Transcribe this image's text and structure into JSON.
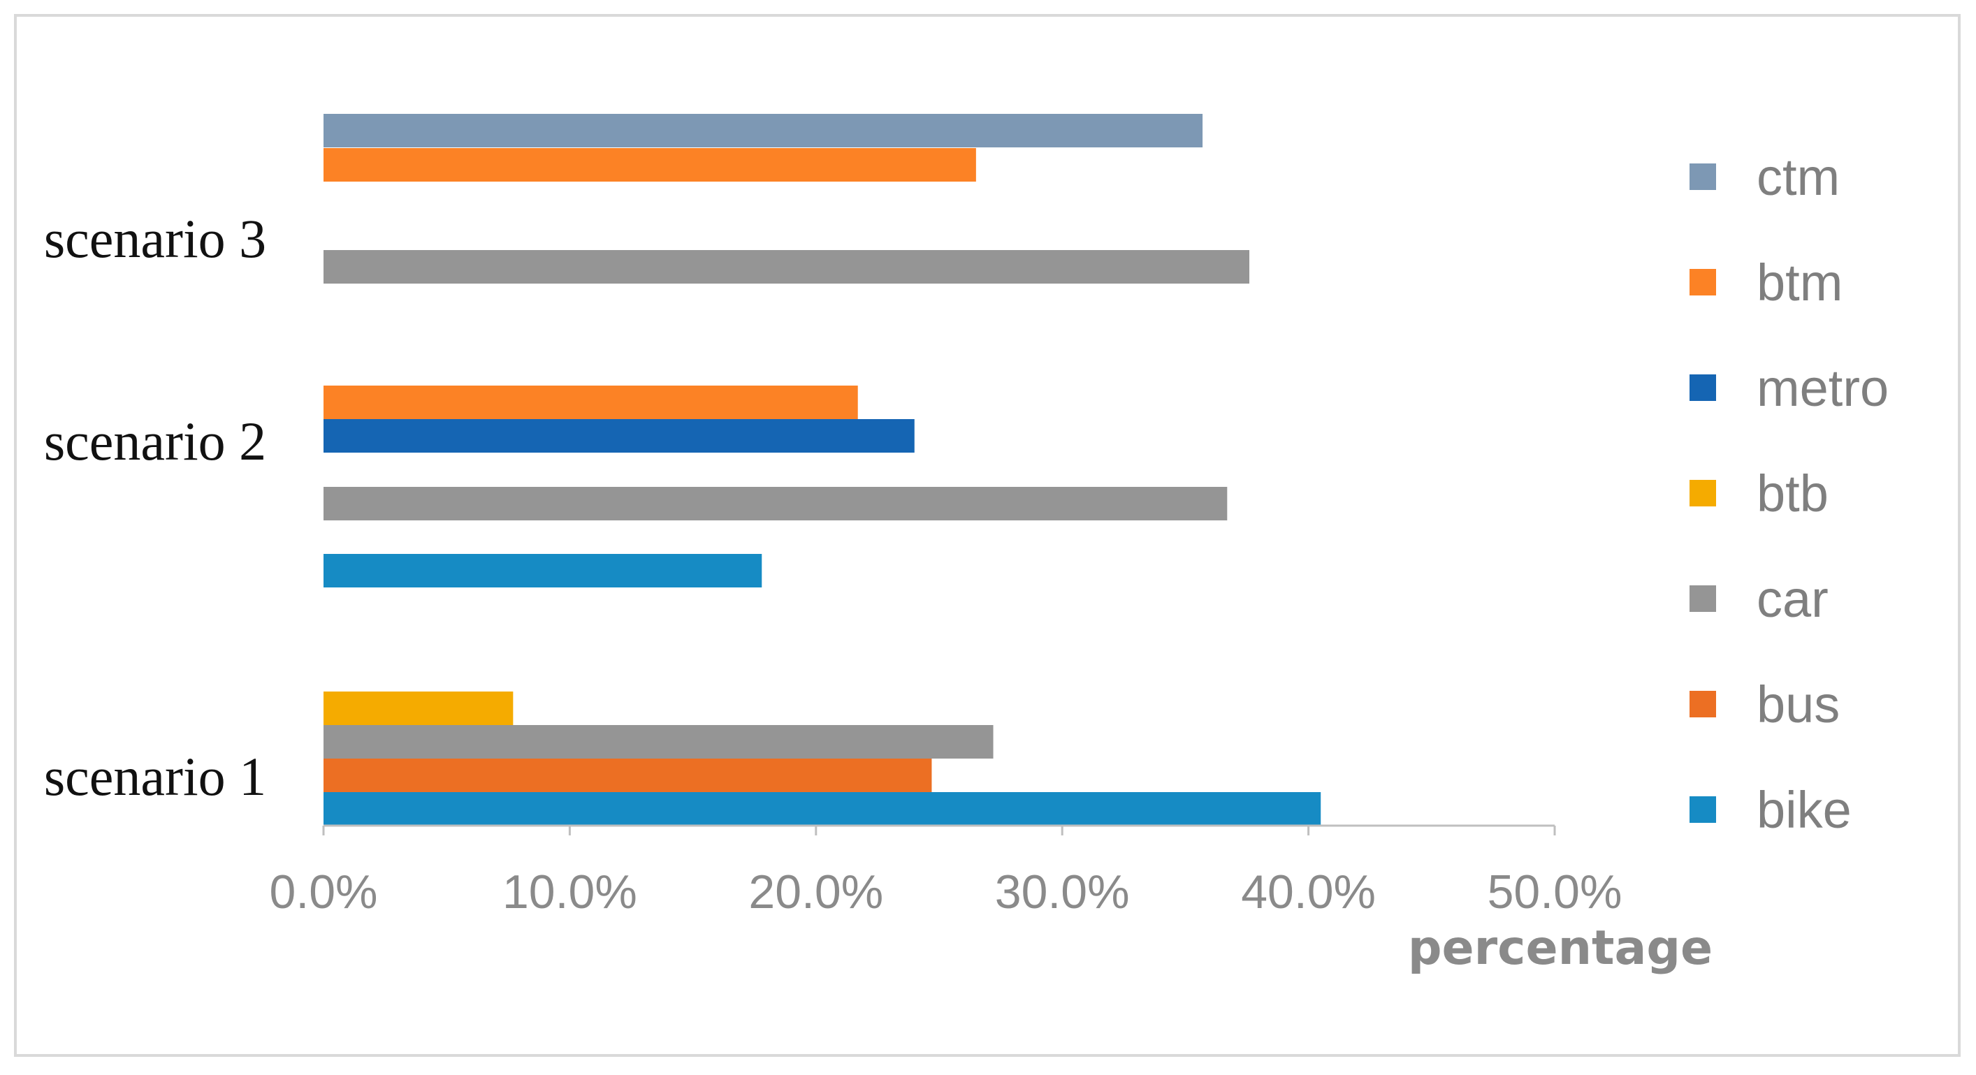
{
  "chart_data": {
    "type": "bar",
    "orientation": "horizontal",
    "categories": [
      "scenario 1",
      "scenario 2",
      "scenario 3"
    ],
    "series": [
      {
        "name": "bike",
        "color": "#168bc4",
        "values": [
          40.5,
          17.8,
          null
        ]
      },
      {
        "name": "bus",
        "color": "#ec6f23",
        "values": [
          24.7,
          null,
          null
        ]
      },
      {
        "name": "car",
        "color": "#959595",
        "values": [
          27.2,
          36.7,
          37.6
        ]
      },
      {
        "name": "btb",
        "color": "#f5ab00",
        "values": [
          7.7,
          null,
          null
        ]
      },
      {
        "name": "metro",
        "color": "#1565b3",
        "values": [
          null,
          24.0,
          null
        ]
      },
      {
        "name": "btm",
        "color": "#fc8225",
        "values": [
          null,
          21.7,
          26.5
        ]
      },
      {
        "name": "ctm",
        "color": "#7d98b4",
        "values": [
          null,
          null,
          35.7
        ]
      }
    ],
    "xlabel": "percentage",
    "xlim": [
      0,
      50
    ],
    "xticks": [
      "0.0%",
      "10.0%",
      "20.0%",
      "30.0%",
      "40.0%",
      "50.0%"
    ],
    "grid": false,
    "legend_position": "right"
  }
}
